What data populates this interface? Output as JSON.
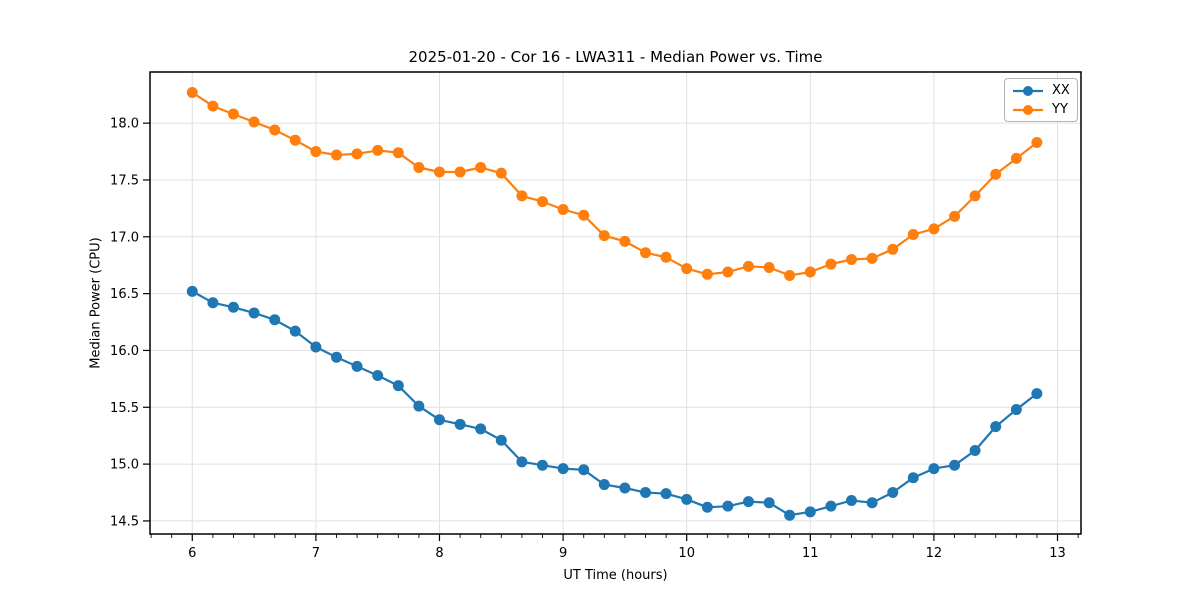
{
  "chart_data": {
    "type": "line",
    "title": "2025-01-20 - Cor 16 - LWA311 - Median Power vs. Time",
    "xlabel": "UT Time (hours)",
    "ylabel": "Median Power (CPU)",
    "xlim": [
      5.658,
      13.19
    ],
    "ylim": [
      14.385,
      18.45
    ],
    "xticks": [
      6,
      7,
      8,
      9,
      10,
      11,
      12,
      13
    ],
    "yticks": [
      14.5,
      15.0,
      15.5,
      16.0,
      16.5,
      17.0,
      17.5,
      18.0
    ],
    "minor_xtick_step_hours": 0.16667,
    "grid": true,
    "legend_position": "upper right",
    "grid_color": "#e0e0e0",
    "x": [
      6.0,
      6.167,
      6.333,
      6.5,
      6.667,
      6.833,
      7.0,
      7.167,
      7.333,
      7.5,
      7.667,
      7.833,
      8.0,
      8.167,
      8.333,
      8.5,
      8.667,
      8.833,
      9.0,
      9.167,
      9.333,
      9.5,
      9.667,
      9.833,
      10.0,
      10.167,
      10.333,
      10.5,
      10.667,
      10.833,
      11.0,
      11.167,
      11.333,
      11.5,
      11.667,
      11.833,
      12.0,
      12.167,
      12.333,
      12.5,
      12.667,
      12.833
    ],
    "series": [
      {
        "name": "XX",
        "color": "#1f77b4",
        "values": [
          16.52,
          16.42,
          16.38,
          16.33,
          16.27,
          16.17,
          16.03,
          15.94,
          15.86,
          15.78,
          15.69,
          15.51,
          15.39,
          15.35,
          15.31,
          15.21,
          15.02,
          14.99,
          14.96,
          14.95,
          14.82,
          14.79,
          14.75,
          14.74,
          14.69,
          14.62,
          14.63,
          14.67,
          14.66,
          14.55,
          14.58,
          14.63,
          14.68,
          14.66,
          14.75,
          14.88,
          14.96,
          14.99,
          15.12,
          15.33,
          15.48,
          15.62
        ]
      },
      {
        "name": "YY",
        "color": "#ff7f0e",
        "values": [
          18.27,
          18.15,
          18.08,
          18.01,
          17.94,
          17.85,
          17.75,
          17.72,
          17.73,
          17.76,
          17.74,
          17.61,
          17.57,
          17.57,
          17.61,
          17.56,
          17.36,
          17.31,
          17.24,
          17.19,
          17.01,
          16.96,
          16.86,
          16.82,
          16.72,
          16.67,
          16.69,
          16.74,
          16.73,
          16.66,
          16.69,
          16.76,
          16.8,
          16.81,
          16.89,
          17.02,
          17.07,
          17.18,
          17.36,
          17.55,
          17.69,
          17.83
        ]
      }
    ]
  }
}
